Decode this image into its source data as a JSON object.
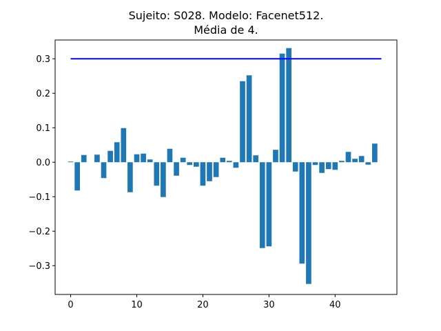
{
  "chart_data": {
    "type": "bar",
    "title_line1": "Sujeito: S028. Modelo: Facenet512.",
    "title_line2": "Média de 4.",
    "xlabel": "",
    "ylabel": "",
    "xlim": [
      -2.35,
      49.35
    ],
    "ylim": [
      -0.3835,
      0.3545
    ],
    "x_ticks": [
      0,
      10,
      20,
      30,
      40
    ],
    "x_tick_labels": [
      "0",
      "10",
      "20",
      "30",
      "40"
    ],
    "y_ticks": [
      -0.3,
      -0.2,
      -0.1,
      0.0,
      0.1,
      0.2,
      0.3
    ],
    "y_tick_labels": [
      "−0.3",
      "−0.2",
      "−0.1",
      "0.0",
      "0.1",
      "0.2",
      "0.3"
    ],
    "grid": false,
    "bar_color": "#1f77b4",
    "threshold": {
      "y": 0.3,
      "x_start": 0,
      "x_end": 47,
      "color": "#0000ff"
    },
    "x": [
      0,
      1,
      2,
      3,
      4,
      5,
      6,
      7,
      8,
      9,
      10,
      11,
      12,
      13,
      14,
      15,
      16,
      17,
      18,
      19,
      20,
      21,
      22,
      23,
      24,
      25,
      26,
      27,
      28,
      29,
      30,
      31,
      32,
      33,
      34,
      35,
      36,
      37,
      38,
      39,
      40,
      41,
      42,
      43,
      44,
      45,
      46,
      47
    ],
    "values": [
      0.002,
      -0.082,
      0.021,
      0.0,
      0.022,
      -0.046,
      0.033,
      0.058,
      0.099,
      -0.087,
      0.023,
      0.025,
      0.008,
      -0.068,
      -0.101,
      0.039,
      -0.039,
      0.013,
      -0.008,
      -0.013,
      -0.068,
      -0.055,
      -0.043,
      0.013,
      0.004,
      -0.016,
      0.235,
      0.252,
      0.02,
      -0.249,
      -0.244,
      0.036,
      0.315,
      0.331,
      -0.027,
      -0.294,
      -0.353,
      -0.008,
      -0.031,
      -0.02,
      -0.022,
      0.004,
      0.03,
      0.01,
      0.018,
      -0.007,
      0.054,
      0.0
    ]
  }
}
